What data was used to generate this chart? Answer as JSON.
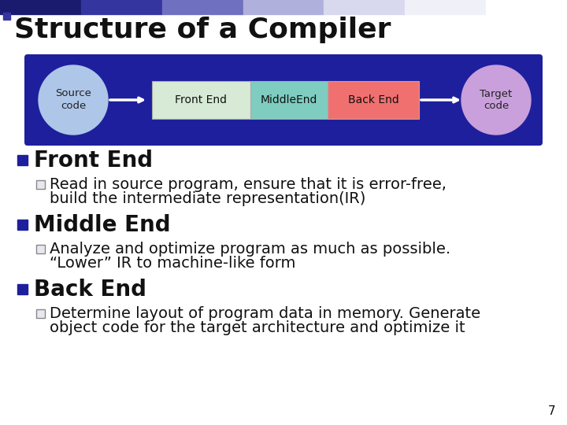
{
  "title": "Structure of a Compiler",
  "title_fontsize": 26,
  "background_color": "#ffffff",
  "header_bg": "#1e1f9c",
  "diagram": {
    "source_circle_color": "#aec6e8",
    "source_text": "Source\ncode",
    "target_circle_color": "#c9a0dc",
    "target_text": "Target\ncode",
    "front_end_color": "#d6ead6",
    "middle_end_color": "#7ecdc0",
    "back_end_color": "#f07070",
    "front_end_text": "Front End",
    "middle_end_text": "MiddleEnd",
    "back_end_text": "Back End"
  },
  "bullet1_color": "#1e1f9c",
  "sub_marker_face": "#e8e8f0",
  "sub_marker_edge": "#888888",
  "page_number": "7",
  "top_bar_colors": [
    "#1a1a6e",
    "#3535a0",
    "#7070c0",
    "#b0b0dd",
    "#d8d8ee",
    "#f0f0f8",
    "#ffffff"
  ],
  "top_sq1_color": "#1a1a6e",
  "top_sq2_color": "#3535a0",
  "content": [
    {
      "level": 1,
      "text": "Front End"
    },
    {
      "level": 2,
      "line1": "Read in source program, ensure that it is error-free,",
      "line2": "build the intermediate representation(IR)"
    },
    {
      "level": 1,
      "text": "Middle End"
    },
    {
      "level": 2,
      "line1": "Analyze and optimize program as much as possible.",
      "line2": "“Lower” IR to machine-like form"
    },
    {
      "level": 1,
      "text": "Back End"
    },
    {
      "level": 2,
      "line1": "Determine layout of program data in memory. Generate",
      "line2": "object code for the target architecture and optimize it"
    }
  ]
}
